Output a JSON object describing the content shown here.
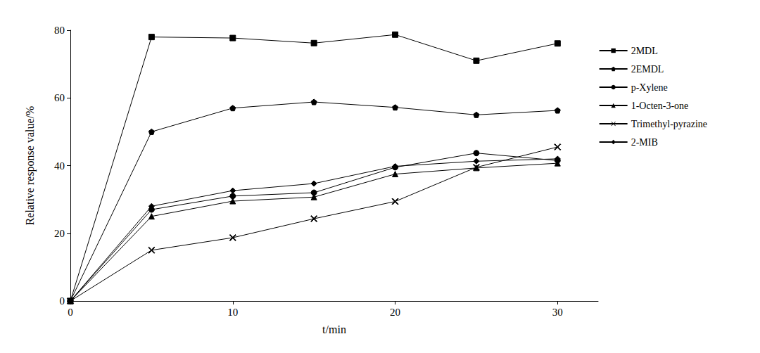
{
  "chart_data": {
    "type": "line",
    "x_label": "t/min",
    "y_label": "Relative response value/%",
    "x": [
      0,
      5,
      10,
      15,
      20,
      25,
      30
    ],
    "xlim": [
      0,
      32.5
    ],
    "xticks": [
      0,
      10,
      20,
      30
    ],
    "ylim": [
      0,
      80
    ],
    "yticks": [
      0,
      20,
      40,
      60,
      80
    ],
    "grid": false,
    "legend": "right",
    "series": [
      {
        "name": "2MDL",
        "color": "#000000",
        "marker": "square",
        "values": [
          0,
          78,
          77.7,
          76.2,
          78.7,
          71,
          76.1
        ]
      },
      {
        "name": "2EMDL",
        "color": "#000000",
        "marker": "pentagon",
        "values": [
          0,
          50,
          57,
          58.8,
          57.2,
          55,
          56.3
        ]
      },
      {
        "name": "p-Xylene",
        "color": "#000000",
        "marker": "circle",
        "values": [
          0,
          27,
          31,
          32,
          39.5,
          43.7,
          41.5
        ]
      },
      {
        "name": "1-Octen-3-one",
        "color": "#000000",
        "marker": "triangle",
        "values": [
          0,
          25,
          29.5,
          30.7,
          37.5,
          39.3,
          40.7
        ]
      },
      {
        "name": "Trimethyl-pyrazine",
        "color": "#000000",
        "marker": "x",
        "values": [
          0,
          15,
          18.7,
          24.3,
          29.4,
          39.5,
          45.5
        ]
      },
      {
        "name": "2-MIB",
        "color": "#000000",
        "marker": "diamond",
        "values": [
          0,
          28,
          32.6,
          34.7,
          39.8,
          41.3,
          42
        ]
      }
    ]
  }
}
